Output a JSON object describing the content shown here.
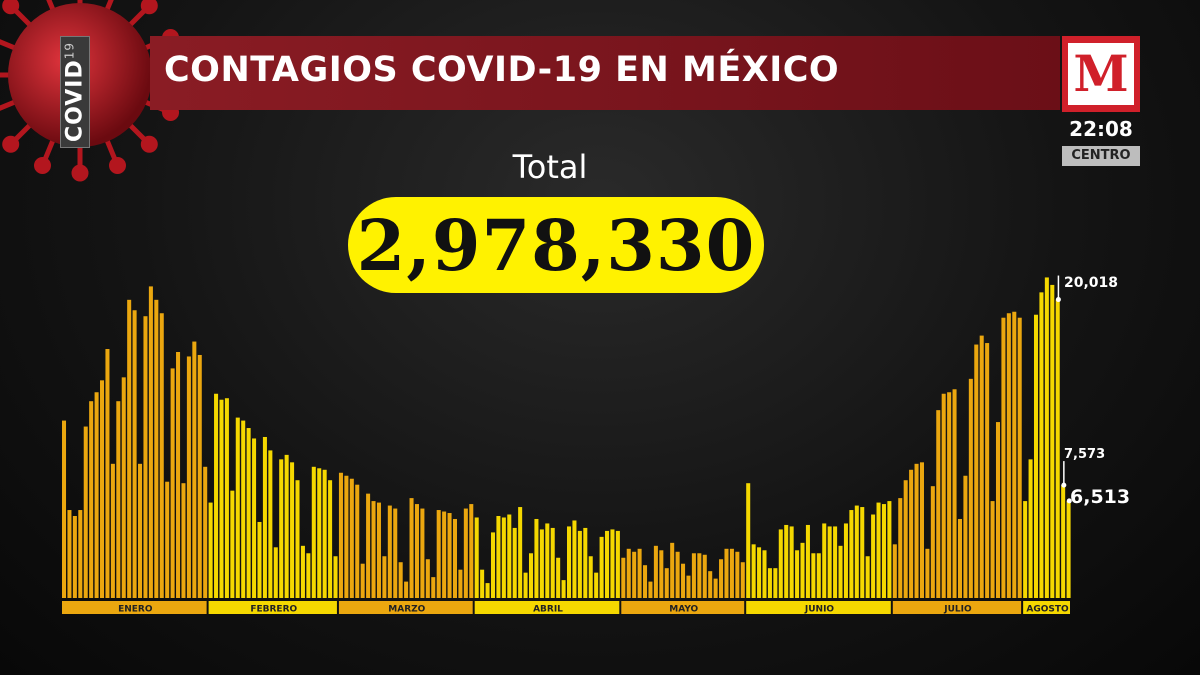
{
  "header": {
    "tag": "COVID",
    "tag_number": "19",
    "title": "CONTAGIOS COVID-19 EN MÉXICO",
    "logo_letter": "M",
    "time": "22:08",
    "zone": "CENTRO"
  },
  "total": {
    "label": "Total",
    "value": "2,978,330"
  },
  "colors": {
    "bar_yellow": "#f5d800",
    "bar_orange": "#eba70f",
    "title_bg": "#7a141c",
    "pill_bg": "#fff200"
  },
  "chart_data": {
    "type": "bar",
    "ylim": [
      0,
      22000
    ],
    "months": [
      {
        "name": "ENERO",
        "values": [
          11900,
          5900,
          5500,
          5900,
          11500,
          13200,
          13800,
          14600,
          16700,
          9000,
          13200,
          14800,
          20000,
          19300,
          9000,
          18900,
          20900,
          20000,
          19100,
          7800,
          15400,
          16500,
          7700,
          16200,
          17200,
          16300,
          8800
        ]
      },
      {
        "name": "FEBRERO",
        "values": [
          6400,
          13700,
          13300,
          13400,
          7200,
          12100,
          11900,
          11400,
          10700,
          5100,
          10800,
          9900,
          3400,
          9300,
          9600,
          9100,
          7900,
          3500,
          3000,
          8800,
          8700,
          8600,
          7900,
          2800
        ]
      },
      {
        "name": "MARZO",
        "values": [
          8400,
          8200,
          8000,
          7600,
          2300,
          7000,
          6500,
          6400,
          2800,
          6200,
          6000,
          2400,
          1100,
          6700,
          6300,
          6000,
          2600,
          1400,
          5900,
          5800,
          5700,
          5300,
          1900,
          6000,
          6300
        ]
      },
      {
        "name": "ABRIL",
        "values": [
          5400,
          1900,
          1000,
          4400,
          5500,
          5400,
          5600,
          4700,
          6100,
          1700,
          3000,
          5300,
          4600,
          5000,
          4700,
          2700,
          1200,
          4800,
          5200,
          4500,
          4700,
          2800,
          1700,
          4100,
          4500,
          4600,
          4500
        ]
      },
      {
        "name": "MAYO",
        "values": [
          2700,
          3300,
          3100,
          3300,
          2200,
          1100,
          3500,
          3200,
          2000,
          3700,
          3100,
          2300,
          1500,
          3000,
          3000,
          2900,
          1800,
          1300,
          2600,
          3300,
          3300,
          3100,
          2400
        ]
      },
      {
        "name": "JUNIO",
        "values": [
          7700,
          3600,
          3400,
          3200,
          2000,
          2000,
          4600,
          4900,
          4800,
          3200,
          3700,
          4900,
          3000,
          3000,
          5000,
          4800,
          4800,
          3500,
          5000,
          5900,
          6200,
          6100,
          2800,
          5600,
          6400,
          6300,
          6500
        ]
      },
      {
        "name": "JULIO",
        "values": [
          3600,
          6700,
          7900,
          8600,
          9000,
          9100,
          3300,
          7500,
          12600,
          13700,
          13800,
          14000,
          5300,
          8200,
          14700,
          17000,
          17600,
          17100,
          6500,
          11800,
          18800,
          19100,
          19200,
          18800
        ]
      },
      {
        "name": "AGOSTO",
        "values": [
          6500,
          9300,
          19000,
          20500,
          21500,
          21000,
          20018,
          7573,
          6513
        ]
      }
    ],
    "annotations": [
      {
        "label": "20,018",
        "value": 20018
      },
      {
        "label": "7,573",
        "value": 7573
      },
      {
        "label": "6,513",
        "value": 6513
      }
    ]
  }
}
